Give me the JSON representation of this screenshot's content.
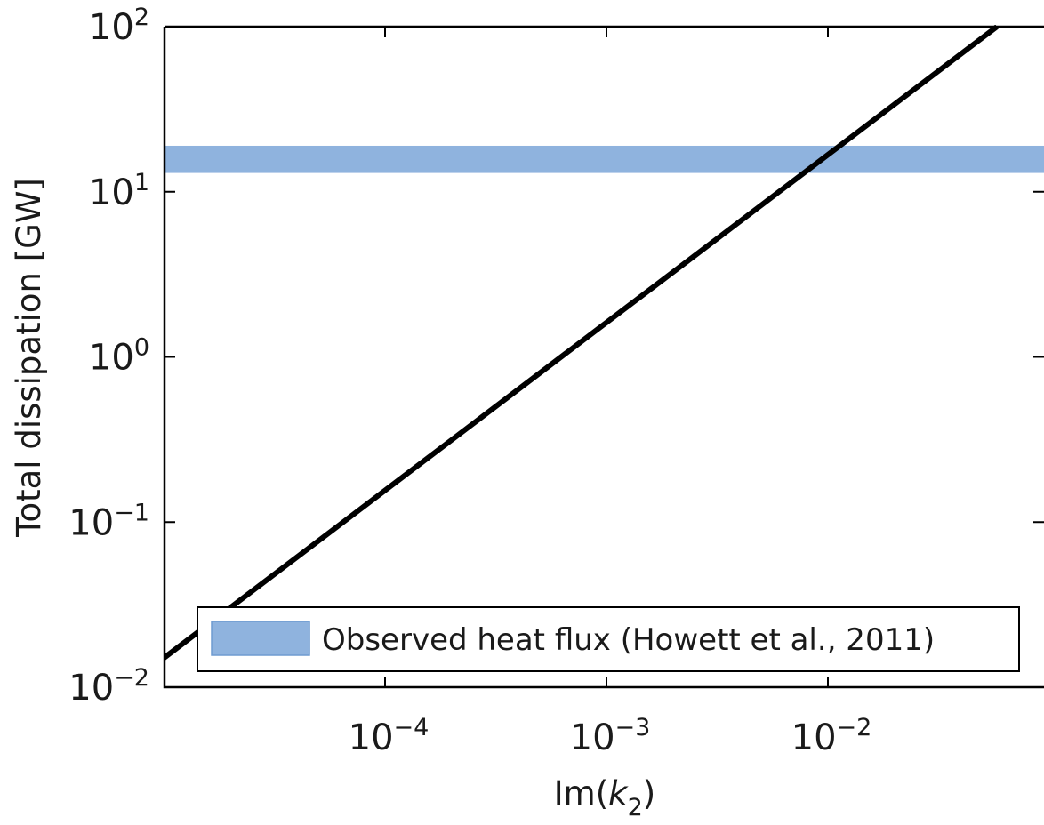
{
  "chart_data": {
    "type": "line",
    "xlabel": "Im(k2)",
    "xlabel_base": "Im(",
    "xlabel_var": "k",
    "xlabel_sub": "2",
    "xlabel_close": ")",
    "ylabel": "Total dissipation [GW]",
    "xscale": "log",
    "yscale": "log",
    "xlim": [
      1e-05,
      0.1
    ],
    "ylim": [
      0.01,
      100
    ],
    "xticks": [
      {
        "value": 0.0001,
        "base": "10",
        "exp": "−4"
      },
      {
        "value": 0.001,
        "base": "10",
        "exp": "−3"
      },
      {
        "value": 0.01,
        "base": "10",
        "exp": "−2"
      }
    ],
    "yticks": [
      {
        "value": 0.01,
        "base": "10",
        "exp": "−2"
      },
      {
        "value": 0.1,
        "base": "10",
        "exp": "−1"
      },
      {
        "value": 1,
        "base": "10",
        "exp": "0"
      },
      {
        "value": 10,
        "base": "10",
        "exp": "1"
      },
      {
        "value": 100,
        "base": "10",
        "exp": "2"
      }
    ],
    "grid": false,
    "series": [
      {
        "color": "#000000",
        "x": [
          1e-05,
          0.058
        ],
        "y": [
          0.015,
          100
        ]
      }
    ],
    "bands": [
      {
        "name": "Observed heat flux (Howett et al., 2011)",
        "ymin": 13,
        "ymax": 19,
        "color": "#8fb3de",
        "edge": "#6f9bd0"
      }
    ],
    "legend": {
      "placement": "bottom-right",
      "entries": [
        "Observed heat flux (Howett et al., 2011)"
      ]
    }
  }
}
